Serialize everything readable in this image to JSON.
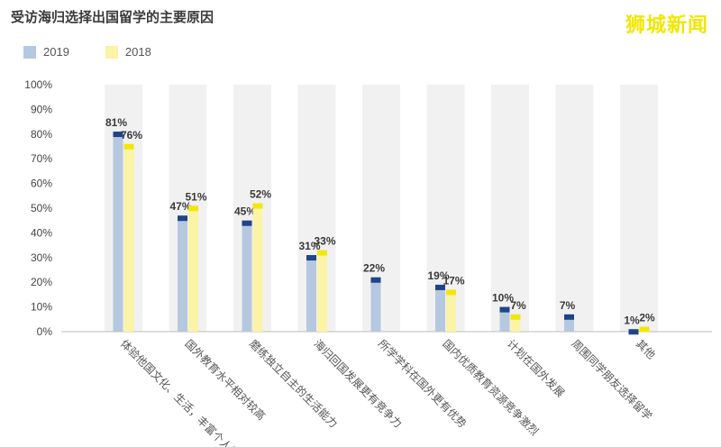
{
  "title": "受访海归选择出国留学的主要原因",
  "watermark": "狮城新闻",
  "colors": {
    "s2019_bar": "#b6c8e0",
    "s2019_cap": "#1f4488",
    "s2018_bar": "#fbf3a6",
    "s2018_cap": "#f3e60a",
    "band": "#f1f1f1",
    "text": "#444444"
  },
  "chart_data": {
    "type": "bar",
    "title": "受访海归选择出国留学的主要原因",
    "categories": [
      "体验他国文化、生活，丰富个人阅历",
      "国外教育水平相对较高",
      "磨练独立自主的生活能力",
      "海归回国发展更有竞争力",
      "所学学科在国外更有优势",
      "国内优质教育资源竞争激烈",
      "计划在国外发展",
      "周围同学朋友选择留学",
      "其他"
    ],
    "series": [
      {
        "name": "2019",
        "values": [
          81,
          47,
          45,
          31,
          22,
          19,
          10,
          7,
          1
        ]
      },
      {
        "name": "2018",
        "values": [
          76,
          51,
          52,
          33,
          null,
          17,
          7,
          null,
          2
        ]
      }
    ],
    "ylim": [
      0,
      100
    ],
    "yticks": [
      "0%",
      "10%",
      "20%",
      "30%",
      "40%",
      "50%",
      "60%",
      "70%",
      "80%",
      "90%",
      "100%"
    ],
    "value_suffix": "%",
    "legend_position": "top-left",
    "grid": false
  }
}
